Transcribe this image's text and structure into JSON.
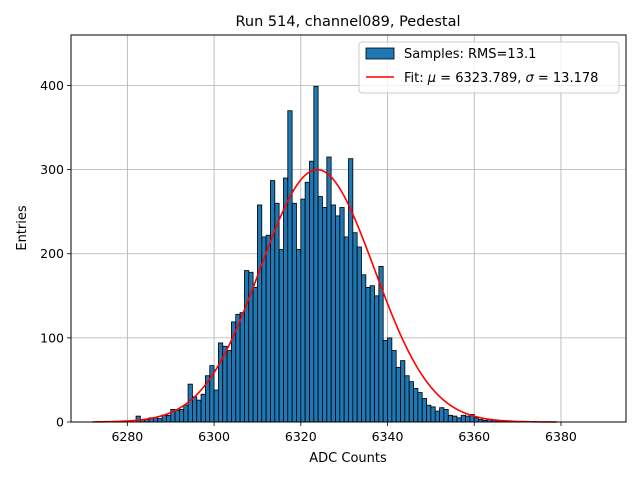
{
  "chart_data": {
    "type": "bar",
    "title": "Run 514, channel089, Pedestal",
    "xlabel": "ADC Counts",
    "ylabel": "Entries",
    "xlim": [
      6267,
      6395
    ],
    "ylim": [
      0,
      460
    ],
    "xticks": [
      6280,
      6300,
      6320,
      6340,
      6360,
      6380
    ],
    "yticks": [
      0,
      100,
      200,
      300,
      400
    ],
    "grid": true,
    "legend_position": "top-right",
    "bar_color": "#1f77b4",
    "fit_color": "#ff0000",
    "histogram": {
      "name": "Samples: RMS=13.1",
      "bin_start": 6282,
      "bin_width": 1,
      "counts": [
        7,
        3,
        3,
        5,
        5,
        4,
        8,
        8,
        15,
        14,
        15,
        20,
        45,
        30,
        26,
        33,
        55,
        67,
        38,
        94,
        90,
        85,
        119,
        128,
        130,
        180,
        178,
        160,
        258,
        220,
        222,
        287,
        260,
        205,
        290,
        370,
        260,
        205,
        265,
        285,
        310,
        399,
        268,
        255,
        315,
        258,
        245,
        255,
        220,
        313,
        225,
        208,
        175,
        160,
        162,
        150,
        185,
        97,
        100,
        85,
        65,
        73,
        55,
        48,
        40,
        35,
        28,
        20,
        18,
        13,
        17,
        15,
        8,
        7,
        5,
        8,
        7,
        9,
        5,
        3,
        2,
        3,
        2,
        1,
        1,
        1
      ]
    },
    "fit": {
      "name_prefix": "Fit: ",
      "name_mu": "μ",
      "name_mid": " = 6323.789, ",
      "name_sigma": "σ",
      "name_suffix": " = 13.178",
      "mu": 6323.789,
      "sigma": 13.178,
      "amplitude": 300,
      "x_range": [
        6272,
        6379
      ]
    }
  }
}
